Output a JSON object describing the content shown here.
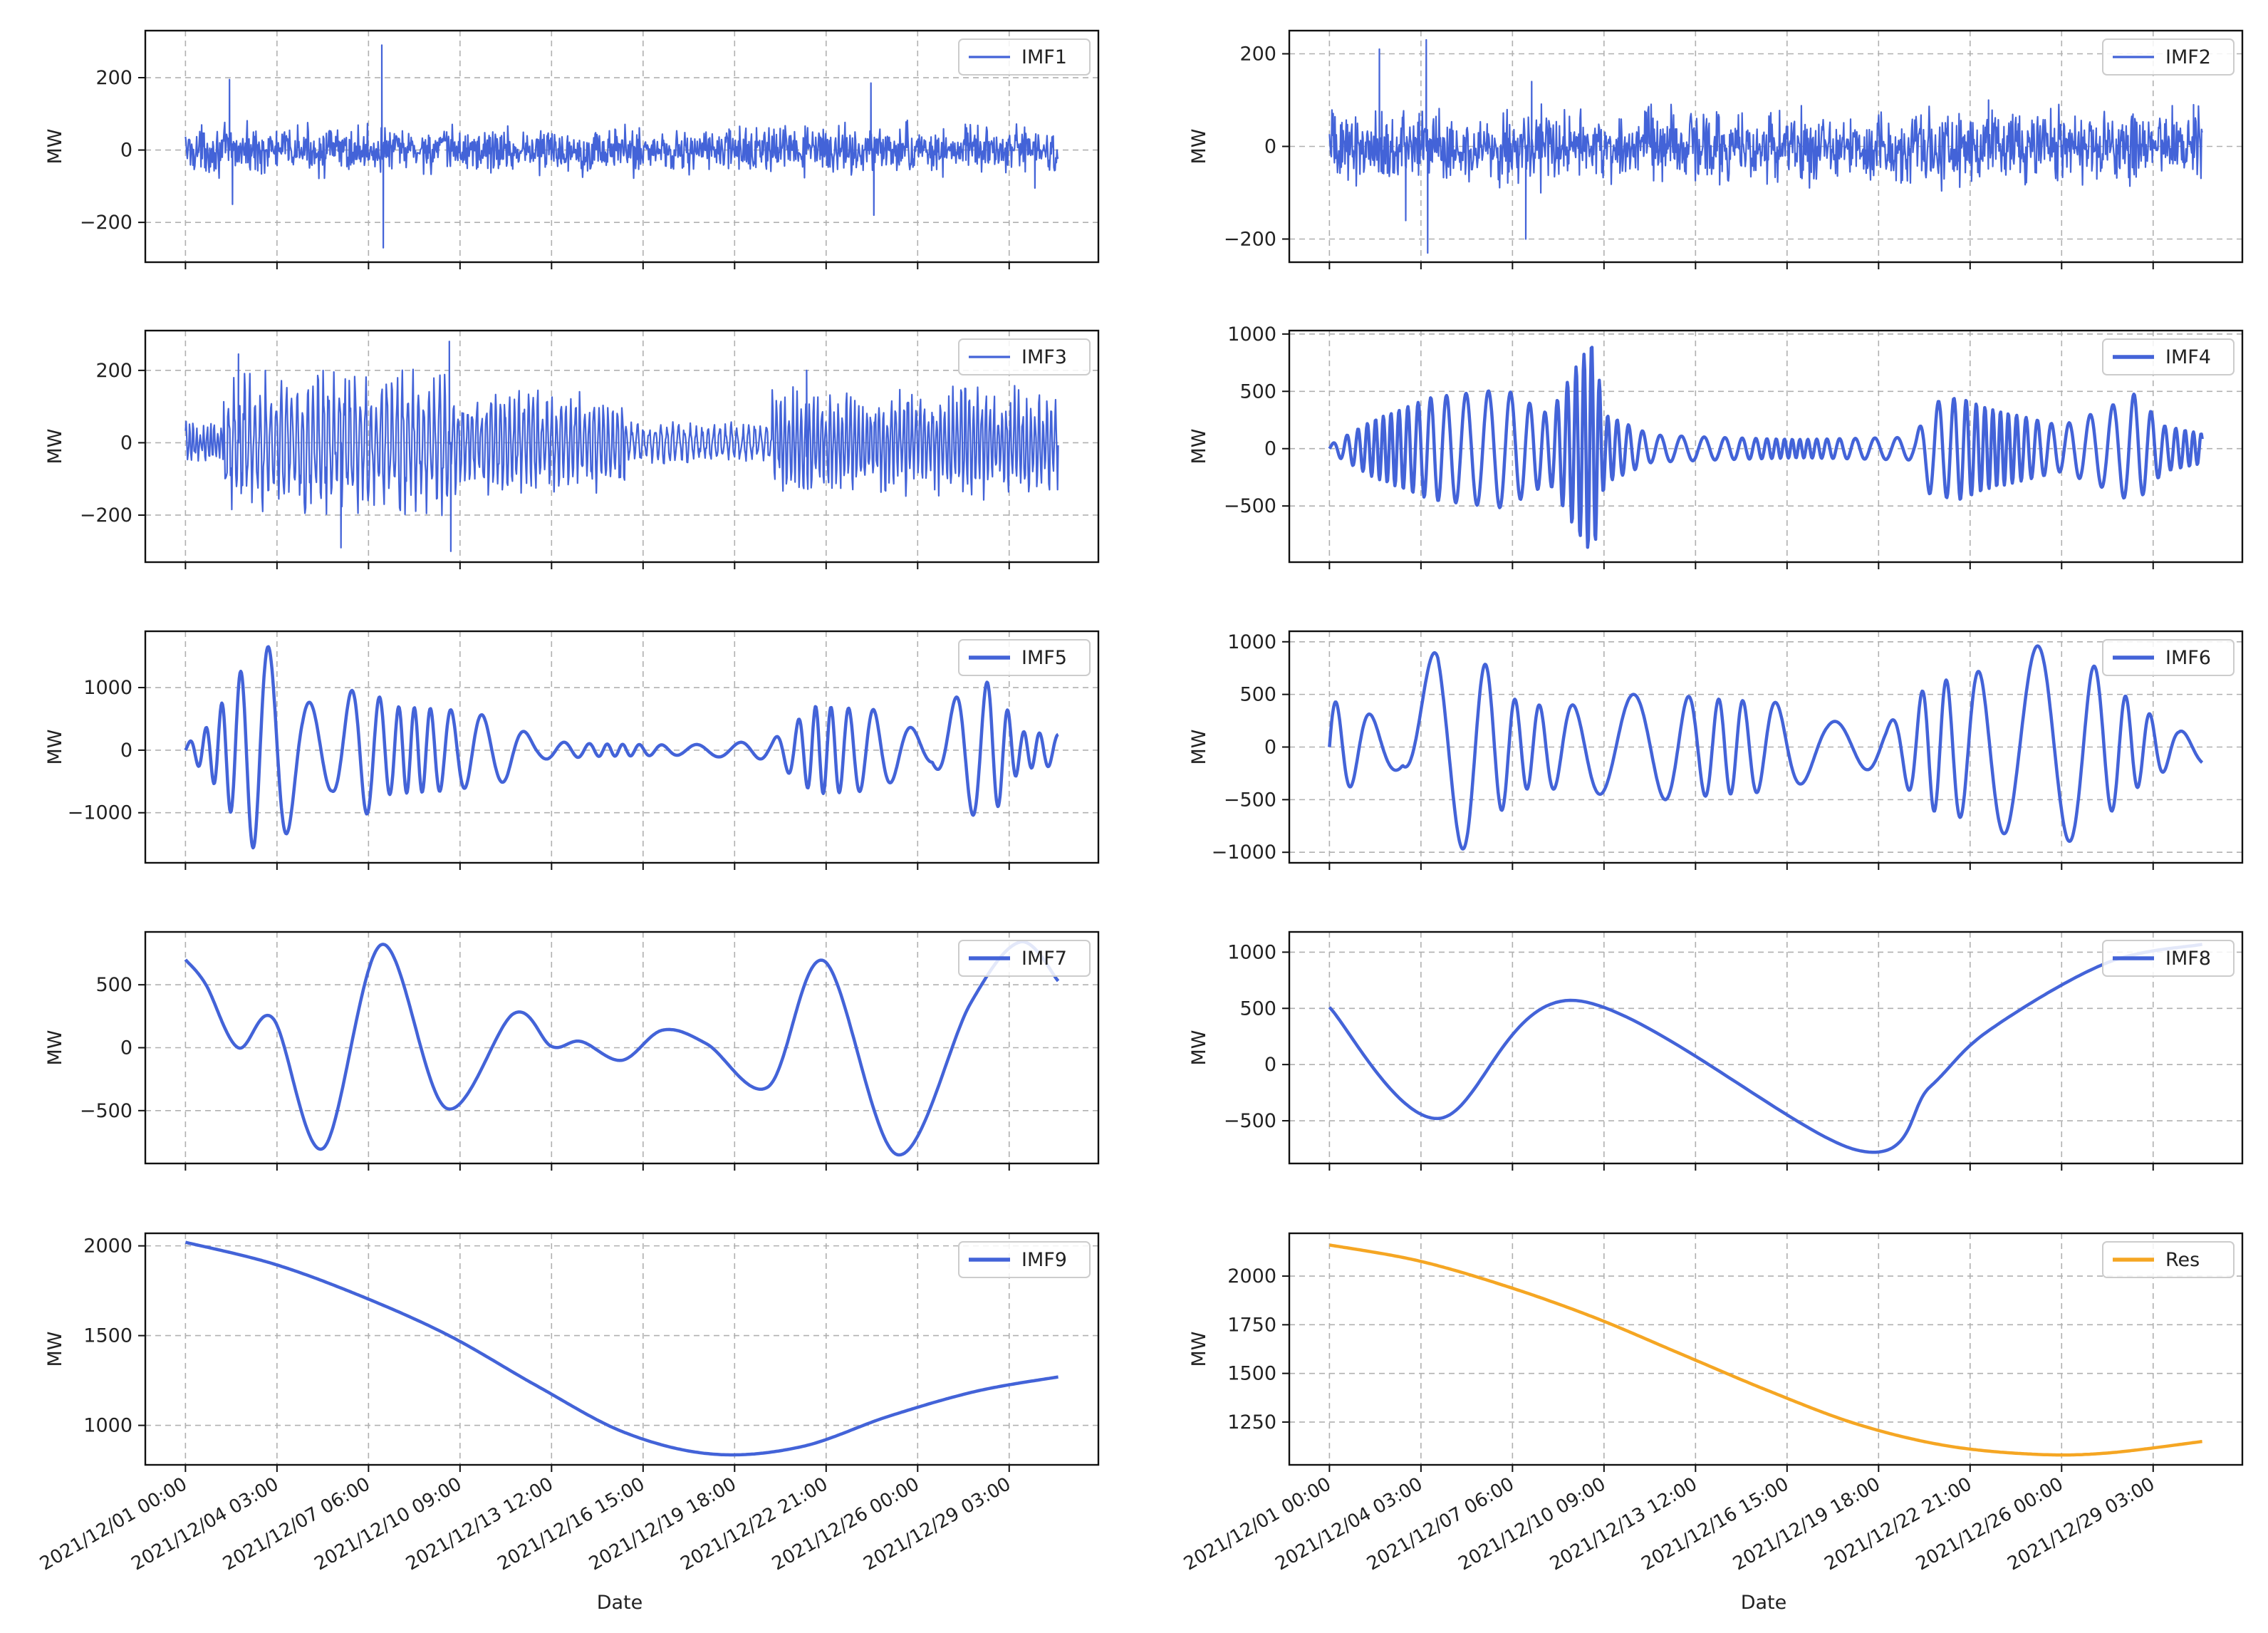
{
  "figure": {
    "xlabel": "Date",
    "ylabel": "MW"
  },
  "x_ticks": [
    "2021/12/01 00:00",
    "2021/12/04 03:00",
    "2021/12/07 06:00",
    "2021/12/10 09:00",
    "2021/12/13 12:00",
    "2021/12/16 15:00",
    "2021/12/19 18:00",
    "2021/12/22 21:00",
    "2021/12/26 00:00",
    "2021/12/29 03:00"
  ],
  "colors": {
    "imf": "#4363d8",
    "res": "#f5a623"
  },
  "chart_data": [
    {
      "type": "line",
      "name": "IMF1",
      "legend": "IMF1",
      "ylabel": "MW",
      "ylim": [
        -310,
        330
      ],
      "yticks": [
        -200,
        0,
        200
      ],
      "x_range_days": [
        0,
        29.8
      ],
      "noise_amplitude": 45,
      "spikes": [
        [
          1.5,
          195
        ],
        [
          1.6,
          -150
        ],
        [
          6.7,
          290
        ],
        [
          6.75,
          -270
        ],
        [
          23.4,
          185
        ],
        [
          23.5,
          -180
        ],
        [
          29,
          -105
        ]
      ]
    },
    {
      "type": "line",
      "name": "IMF2",
      "legend": "IMF2",
      "ylabel": "MW",
      "ylim": [
        -250,
        250
      ],
      "yticks": [
        -200,
        0,
        200
      ],
      "x_range_days": [
        0,
        29.8
      ],
      "noise_amplitude": 55,
      "spikes": [
        [
          1.7,
          210
        ],
        [
          2.6,
          -160
        ],
        [
          3.3,
          230
        ],
        [
          3.35,
          -230
        ],
        [
          6.7,
          -200
        ],
        [
          6.9,
          140
        ],
        [
          22.5,
          100
        ],
        [
          29.5,
          90
        ]
      ]
    },
    {
      "type": "line",
      "name": "IMF3",
      "legend": "IMF3",
      "ylabel": "MW",
      "ylim": [
        -330,
        310
      ],
      "yticks": [
        -200,
        0,
        200
      ],
      "x_range_days": [
        0,
        29.8
      ],
      "segments": [
        [
          0,
          1.3,
          60,
          0.12
        ],
        [
          1.3,
          9.0,
          210,
          0.18
        ],
        [
          9.0,
          15.0,
          150,
          0.16
        ],
        [
          15.0,
          20.0,
          60,
          0.2
        ],
        [
          20.0,
          29.8,
          160,
          0.14
        ]
      ],
      "spikes": [
        [
          1.8,
          245
        ],
        [
          5.3,
          -290
        ],
        [
          9.0,
          280
        ],
        [
          9.05,
          -300
        ],
        [
          21.2,
          200
        ]
      ]
    },
    {
      "type": "line",
      "name": "IMF4",
      "legend": "IMF4",
      "ylabel": "MW",
      "ylim": [
        -990,
        1030
      ],
      "yticks": [
        -500,
        0,
        500,
        1000
      ],
      "x_range_days": [
        0,
        29.8
      ],
      "period_days": 0.65,
      "envelope": [
        [
          0,
          30
        ],
        [
          1.5,
          250
        ],
        [
          3.5,
          450
        ],
        [
          6,
          520
        ],
        [
          7.5,
          300
        ],
        [
          8.5,
          750
        ],
        [
          9.0,
          940
        ],
        [
          9.4,
          300
        ],
        [
          11,
          120
        ],
        [
          13,
          100
        ],
        [
          16,
          80
        ],
        [
          20,
          100
        ],
        [
          20.5,
          400
        ],
        [
          21.5,
          450
        ],
        [
          22.5,
          350
        ],
        [
          25,
          200
        ],
        [
          26.5,
          350
        ],
        [
          27.5,
          480
        ],
        [
          28.5,
          200
        ],
        [
          29.8,
          130
        ]
      ]
    },
    {
      "type": "line",
      "name": "IMF5",
      "legend": "IMF5",
      "ylabel": "MW",
      "ylim": [
        -1800,
        1900
      ],
      "yticks": [
        -1000,
        0,
        1000
      ],
      "x_range_days": [
        0,
        29.8
      ],
      "period_days": 1.3,
      "envelope": [
        [
          0,
          80
        ],
        [
          0.8,
          400
        ],
        [
          1.8,
          1200
        ],
        [
          2.5,
          1700
        ],
        [
          3.2,
          1600
        ],
        [
          4,
          800
        ],
        [
          5,
          650
        ],
        [
          6,
          1100
        ],
        [
          7,
          700
        ],
        [
          9,
          650
        ],
        [
          11,
          500
        ],
        [
          12,
          150
        ],
        [
          14,
          100
        ],
        [
          17,
          80
        ],
        [
          20,
          150
        ],
        [
          21.5,
          700
        ],
        [
          23.5,
          650
        ],
        [
          25.5,
          200
        ],
        [
          26.5,
          1000
        ],
        [
          27.5,
          1100
        ],
        [
          28.5,
          300
        ],
        [
          29.8,
          250
        ]
      ]
    },
    {
      "type": "line",
      "name": "IMF6",
      "legend": "IMF6",
      "ylabel": "MW",
      "ylim": [
        -1100,
        1100
      ],
      "yticks": [
        -1000,
        -500,
        0,
        500,
        1000
      ],
      "x_range_days": [
        0,
        29.8
      ],
      "period_days": 2.0,
      "envelope": [
        [
          0,
          450
        ],
        [
          1,
          350
        ],
        [
          2.5,
          200
        ],
        [
          3.7,
          1000
        ],
        [
          4.8,
          960
        ],
        [
          6.5,
          400
        ],
        [
          8.5,
          400
        ],
        [
          10,
          500
        ],
        [
          11.5,
          500
        ],
        [
          13.5,
          450
        ],
        [
          15.5,
          420
        ],
        [
          17,
          250
        ],
        [
          19,
          200
        ],
        [
          20.5,
          600
        ],
        [
          22,
          700
        ],
        [
          24.5,
          1000
        ],
        [
          26,
          800
        ],
        [
          27.5,
          400
        ],
        [
          29,
          150
        ],
        [
          29.8,
          160
        ]
      ]
    },
    {
      "type": "line",
      "name": "IMF7",
      "legend": "IMF7",
      "ylabel": "MW",
      "ylim": [
        -920,
        920
      ],
      "yticks": [
        -500,
        0,
        500
      ],
      "x_range_days": [
        0,
        29.8
      ],
      "points": [
        [
          0,
          700
        ],
        [
          0.7,
          500
        ],
        [
          1.8,
          0
        ],
        [
          3,
          230
        ],
        [
          4.7,
          -800
        ],
        [
          6.7,
          820
        ],
        [
          8.9,
          -480
        ],
        [
          11.2,
          270
        ],
        [
          12.5,
          10
        ],
        [
          13.5,
          50
        ],
        [
          14.9,
          -100
        ],
        [
          16.3,
          140
        ],
        [
          17.8,
          30
        ],
        [
          19.9,
          -310
        ],
        [
          21.8,
          690
        ],
        [
          24.3,
          -850
        ],
        [
          26.8,
          350
        ],
        [
          28.5,
          840
        ],
        [
          29.8,
          530
        ]
      ]
    },
    {
      "type": "line",
      "name": "IMF8",
      "legend": "IMF8",
      "ylabel": "MW",
      "ylim": [
        -880,
        1180
      ],
      "yticks": [
        -500,
        0,
        500,
        1000
      ],
      "x_range_days": [
        0,
        29.8
      ],
      "points": [
        [
          0,
          510
        ],
        [
          3.7,
          -480
        ],
        [
          8.4,
          570
        ],
        [
          18,
          -760
        ],
        [
          20.5,
          -200
        ],
        [
          22.5,
          300
        ],
        [
          26.5,
          900
        ],
        [
          29.8,
          1070
        ]
      ]
    },
    {
      "type": "line",
      "name": "IMF9",
      "legend": "IMF9",
      "ylabel": "MW",
      "ylim": [
        780,
        2070
      ],
      "yticks": [
        1000,
        1500,
        2000
      ],
      "x_range_days": [
        0,
        29.8
      ],
      "points": [
        [
          0,
          2020
        ],
        [
          3,
          1900
        ],
        [
          6,
          1720
        ],
        [
          9,
          1500
        ],
        [
          12,
          1220
        ],
        [
          15,
          960
        ],
        [
          18,
          840
        ],
        [
          21,
          880
        ],
        [
          24,
          1050
        ],
        [
          27,
          1190
        ],
        [
          29.8,
          1270
        ]
      ]
    },
    {
      "type": "line",
      "name": "Res",
      "legend": "Res",
      "ylabel": "MW",
      "ylim": [
        1030,
        2220
      ],
      "yticks": [
        1250,
        1500,
        1750,
        2000
      ],
      "x_range_days": [
        0,
        29.8
      ],
      "points": [
        [
          0,
          2160
        ],
        [
          3,
          2080
        ],
        [
          6,
          1950
        ],
        [
          9,
          1790
        ],
        [
          12,
          1600
        ],
        [
          15,
          1410
        ],
        [
          18,
          1240
        ],
        [
          21,
          1130
        ],
        [
          24,
          1085
        ],
        [
          26.5,
          1090
        ],
        [
          29.8,
          1150
        ]
      ]
    }
  ]
}
